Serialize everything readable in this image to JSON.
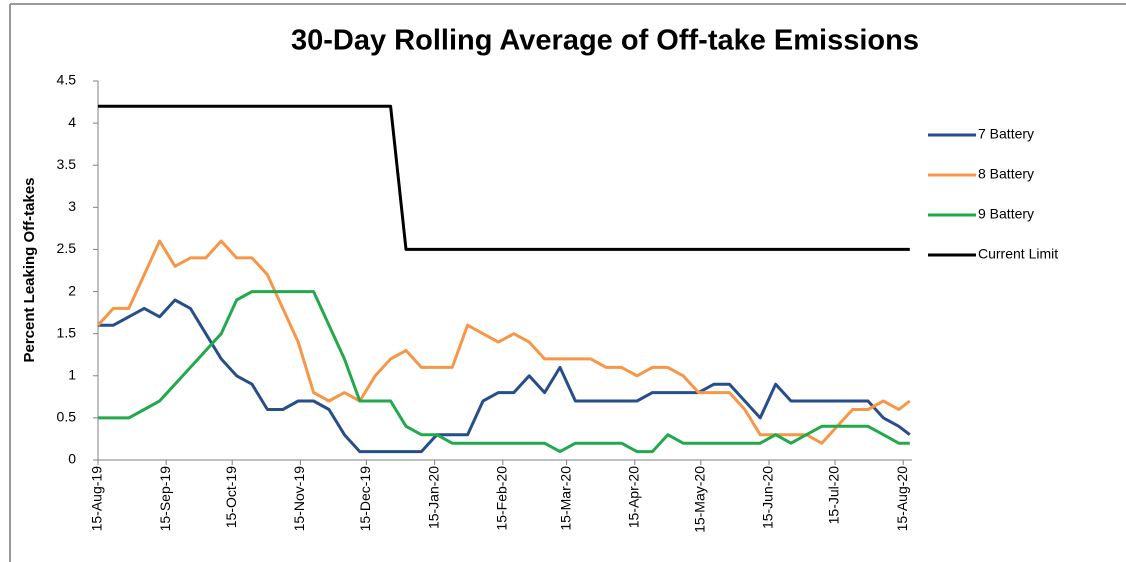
{
  "chart_data": {
    "type": "line",
    "title": "30-Day Rolling Average of Off-take Emissions",
    "y_label": "Percent Leaking Off-takes",
    "x": [
      "2019-08-15",
      "2019-08-22",
      "2019-08-29",
      "2019-09-05",
      "2019-09-12",
      "2019-09-19",
      "2019-09-26",
      "2019-10-03",
      "2019-10-10",
      "2019-10-17",
      "2019-10-24",
      "2019-10-31",
      "2019-11-07",
      "2019-11-14",
      "2019-11-21",
      "2019-11-28",
      "2019-12-05",
      "2019-12-12",
      "2019-12-19",
      "2019-12-26",
      "2020-01-02",
      "2020-01-09",
      "2020-01-16",
      "2020-01-23",
      "2020-01-30",
      "2020-02-06",
      "2020-02-13",
      "2020-02-20",
      "2020-02-27",
      "2020-03-05",
      "2020-03-12",
      "2020-03-19",
      "2020-03-26",
      "2020-04-02",
      "2020-04-09",
      "2020-04-16",
      "2020-04-23",
      "2020-04-30",
      "2020-05-07",
      "2020-05-14",
      "2020-05-21",
      "2020-05-28",
      "2020-06-04",
      "2020-06-11",
      "2020-06-18",
      "2020-06-25",
      "2020-07-02",
      "2020-07-09",
      "2020-07-16",
      "2020-07-23",
      "2020-07-30",
      "2020-08-06",
      "2020-08-13",
      "2020-08-18"
    ],
    "series": [
      {
        "name": "7 Battery",
        "color": "#254e8a",
        "values": [
          1.6,
          1.6,
          1.7,
          1.8,
          1.7,
          1.9,
          1.8,
          1.5,
          1.2,
          1.0,
          0.9,
          0.6,
          0.6,
          0.7,
          0.7,
          0.6,
          0.3,
          0.1,
          0.1,
          0.1,
          0.1,
          0.1,
          0.3,
          0.3,
          0.3,
          0.7,
          0.8,
          0.8,
          1.0,
          0.8,
          1.1,
          0.7,
          0.7,
          0.7,
          0.7,
          0.7,
          0.8,
          0.8,
          0.8,
          0.8,
          0.9,
          0.9,
          0.7,
          0.5,
          0.9,
          0.7,
          0.7,
          0.7,
          0.7,
          0.7,
          0.7,
          0.5,
          0.4,
          0.3
        ]
      },
      {
        "name": "8 Battery",
        "color": "#f79646",
        "values": [
          1.6,
          1.8,
          1.8,
          2.2,
          2.6,
          2.3,
          2.4,
          2.4,
          2.6,
          2.4,
          2.4,
          2.2,
          1.8,
          1.4,
          0.8,
          0.7,
          0.8,
          0.7,
          1.0,
          1.2,
          1.3,
          1.1,
          1.1,
          1.1,
          1.6,
          1.5,
          1.4,
          1.5,
          1.4,
          1.2,
          1.2,
          1.2,
          1.2,
          1.1,
          1.1,
          1.0,
          1.1,
          1.1,
          1.0,
          0.8,
          0.8,
          0.8,
          0.6,
          0.3,
          0.3,
          0.3,
          0.3,
          0.2,
          0.4,
          0.6,
          0.6,
          0.7,
          0.6,
          0.7
        ]
      },
      {
        "name": "9 Battery",
        "color": "#22a94b",
        "values": [
          0.5,
          0.5,
          0.5,
          0.6,
          0.7,
          0.9,
          1.1,
          1.3,
          1.5,
          1.9,
          2.0,
          2.0,
          2.0,
          2.0,
          2.0,
          1.6,
          1.2,
          0.7,
          0.7,
          0.7,
          0.4,
          0.3,
          0.3,
          0.2,
          0.2,
          0.2,
          0.2,
          0.2,
          0.2,
          0.2,
          0.1,
          0.2,
          0.2,
          0.2,
          0.2,
          0.1,
          0.1,
          0.3,
          0.2,
          0.2,
          0.2,
          0.2,
          0.2,
          0.2,
          0.3,
          0.2,
          0.3,
          0.4,
          0.4,
          0.4,
          0.4,
          0.3,
          0.2,
          0.2
        ]
      },
      {
        "name": "Current Limit",
        "color": "#000000",
        "values": [
          4.2,
          4.2,
          4.2,
          4.2,
          4.2,
          4.2,
          4.2,
          4.2,
          4.2,
          4.2,
          4.2,
          4.2,
          4.2,
          4.2,
          4.2,
          4.2,
          4.2,
          4.2,
          4.2,
          4.2,
          2.5,
          2.5,
          2.5,
          2.5,
          2.5,
          2.5,
          2.5,
          2.5,
          2.5,
          2.5,
          2.5,
          2.5,
          2.5,
          2.5,
          2.5,
          2.5,
          2.5,
          2.5,
          2.5,
          2.5,
          2.5,
          2.5,
          2.5,
          2.5,
          2.5,
          2.5,
          2.5,
          2.5,
          2.5,
          2.5,
          2.5,
          2.5,
          2.5,
          2.5
        ]
      }
    ],
    "xlim": [
      "2019-08-15",
      "2020-08-19"
    ],
    "xticks": [
      {
        "value": "2019-08-15",
        "label": "15-Aug-19"
      },
      {
        "value": "2019-09-15",
        "label": "15-Sep-19"
      },
      {
        "value": "2019-10-15",
        "label": "15-Oct-19"
      },
      {
        "value": "2019-11-15",
        "label": "15-Nov-19"
      },
      {
        "value": "2019-12-15",
        "label": "15-Dec-19"
      },
      {
        "value": "2020-01-15",
        "label": "15-Jan-20"
      },
      {
        "value": "2020-02-15",
        "label": "15-Feb-20"
      },
      {
        "value": "2020-03-15",
        "label": "15-Mar-20"
      },
      {
        "value": "2020-04-15",
        "label": "15-Apr-20"
      },
      {
        "value": "2020-05-15",
        "label": "15-May-20"
      },
      {
        "value": "2020-06-15",
        "label": "15-Jun-20"
      },
      {
        "value": "2020-07-15",
        "label": "15-Jul-20"
      },
      {
        "value": "2020-08-15",
        "label": "15-Aug-20"
      }
    ],
    "ylim": [
      0,
      4.5
    ],
    "yticks": [
      0,
      0.5,
      1,
      1.5,
      2,
      2.5,
      3,
      3.5,
      4,
      4.5
    ],
    "grid": false,
    "legend": "right"
  }
}
